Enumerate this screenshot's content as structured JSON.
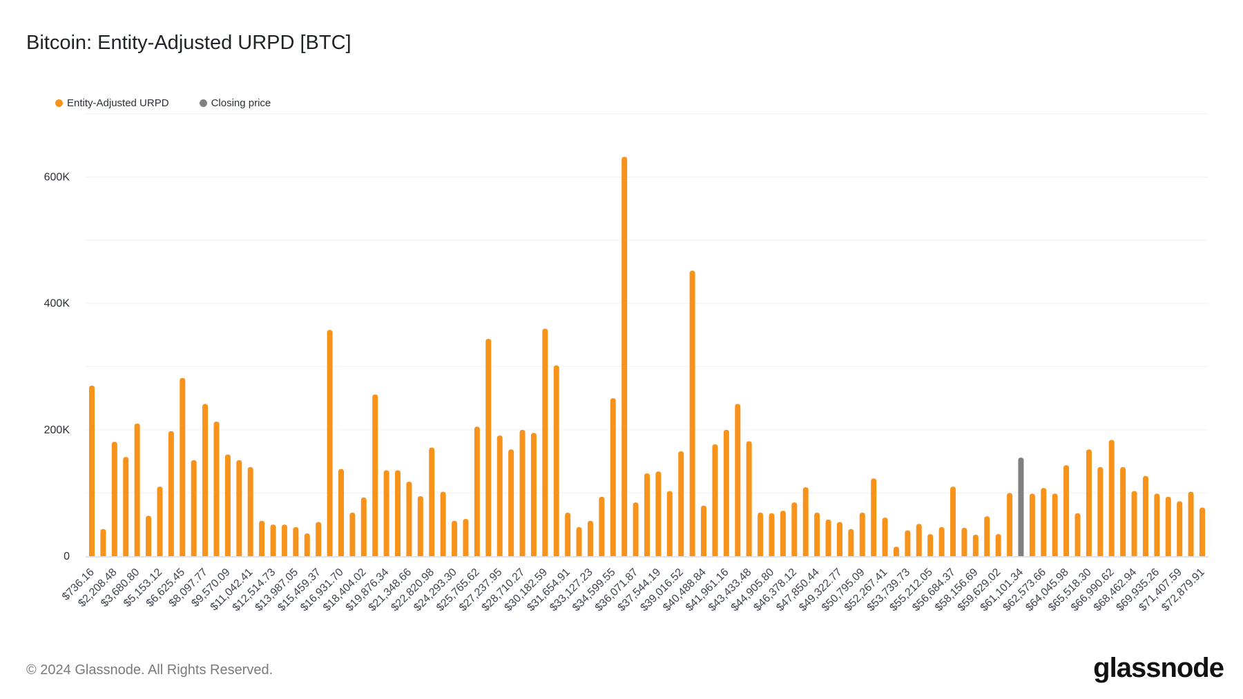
{
  "title": "Bitcoin: Entity-Adjusted URPD [BTC]",
  "footer": {
    "copyright": "© 2024 Glassnode. All Rights Reserved.",
    "logo": "glassnode"
  },
  "colors": {
    "urpd": "#F7931A",
    "closing_price": "#808080"
  },
  "chart_data": {
    "type": "bar",
    "title": "Bitcoin: Entity-Adjusted URPD [BTC]",
    "legend": [
      {
        "name": "Entity-Adjusted URPD",
        "color": "#F7931A"
      },
      {
        "name": "Closing price",
        "color": "#808080"
      }
    ],
    "legend_position": "top-left",
    "grid": true,
    "ylim": [
      0,
      700000
    ],
    "yticks": [
      {
        "value": 0,
        "label": "0"
      },
      {
        "value": 200000,
        "label": "200K"
      },
      {
        "value": 400000,
        "label": "400K"
      },
      {
        "value": 600000,
        "label": "600K"
      }
    ],
    "bin_start": 0,
    "bin_width": 736.16,
    "closing_price_index": 82,
    "x_tick_labels": [
      "$736.16",
      "$2,208.48",
      "$3,680.80",
      "$5,153.12",
      "$6,625.45",
      "$8,097.77",
      "$9,570.09",
      "$11,042.41",
      "$12,514.73",
      "$13,987.05",
      "$15,459.37",
      "$16,931.70",
      "$18,404.02",
      "$19,876.34",
      "$21,348.66",
      "$22,820.98",
      "$24,293.30",
      "$25,765.62",
      "$27,237.95",
      "$28,710.27",
      "$30,182.59",
      "$31,654.91",
      "$33,127.23",
      "$34,599.55",
      "$36,071.87",
      "$37,544.19",
      "$39,016.52",
      "$40,488.84",
      "$41,961.16",
      "$43,433.48",
      "$44,905.80",
      "$46,378.12",
      "$47,850.44",
      "$49,322.77",
      "$50,795.09",
      "$52,267.41",
      "$53,739.73",
      "$55,212.05",
      "$56,684.37",
      "$58,156.69",
      "$59,629.02",
      "$61,101.34",
      "$62,573.66",
      "$64,045.98",
      "$65,518.30",
      "$66,990.62",
      "$68,462.94",
      "$69,935.26",
      "$71,407.59",
      "$72,879.91"
    ],
    "values": [
      270000,
      43000,
      181000,
      157000,
      210000,
      64000,
      110000,
      198000,
      282000,
      152000,
      241000,
      213000,
      161000,
      152000,
      141000,
      56000,
      50000,
      50000,
      46000,
      36000,
      54000,
      358000,
      138000,
      69000,
      93000,
      256000,
      136000,
      136000,
      118000,
      95000,
      172000,
      102000,
      56000,
      59000,
      205000,
      344000,
      191000,
      169000,
      200000,
      195000,
      360000,
      302000,
      69000,
      46000,
      56000,
      94000,
      250000,
      632000,
      85000,
      131000,
      134000,
      103000,
      166000,
      452000,
      80000,
      177000,
      200000,
      241000,
      182000,
      69000,
      68000,
      72000,
      85000,
      109000,
      69000,
      58000,
      54000,
      43000,
      69000,
      123000,
      61000,
      15000,
      41000,
      51000,
      35000,
      46000,
      110000,
      45000,
      34000,
      63000,
      35000,
      100000,
      156000,
      99000,
      108000,
      99000,
      144000,
      68000,
      169000,
      141000,
      184000,
      141000,
      103000,
      127000,
      99000,
      94000,
      87000,
      102000,
      77000
    ]
  }
}
